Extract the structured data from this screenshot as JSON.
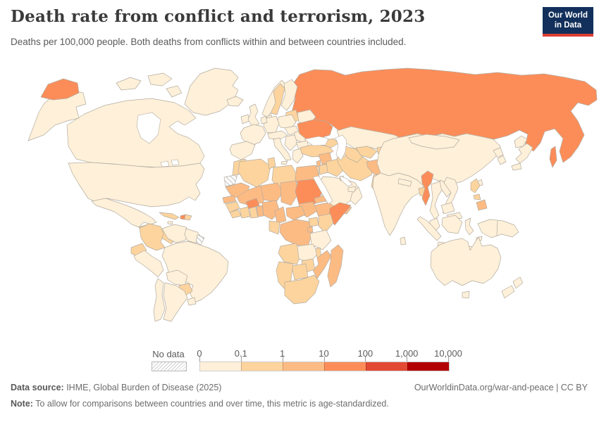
{
  "header": {
    "title": "Death rate from conflict and terrorism, 2023",
    "subtitle": "Deaths per 100,000 people. Both deaths from conflicts within and between countries included.",
    "logo": {
      "line1": "Our World",
      "line2": "in Data",
      "bg": "#12305b",
      "accent": "#dc3e32"
    }
  },
  "legend": {
    "no_data_label": "No data",
    "tick_labels": [
      "0",
      "0.1",
      "1",
      "10",
      "100",
      "1,000",
      "10,000"
    ]
  },
  "map": {
    "ocean_color": "#ffffff",
    "border_color": "#b3aca0",
    "default_fill": "#fef0d9"
  },
  "footer": {
    "source_label": "Data source:",
    "source_text": " IHME, Global Burden of Disease (2025)",
    "note_label": "Note:",
    "note_text": " To allow for comparisons between countries and over time, this metric is age-standardized.",
    "right_text": "OurWorldinData.org/war-and-peace | CC BY"
  },
  "chart_data": {
    "type": "choropleth",
    "title": "Death rate from conflict and terrorism, 2023",
    "subtitle": "Deaths per 100,000 people. Both deaths from conflicts within and between countries included.",
    "year": "2023",
    "unit": "deaths per 100,000 people",
    "scale": {
      "kind": "log-binned",
      "bin_ranges": [
        "0-0.1",
        "0.1-1",
        "1-10",
        "10-100",
        "100-1,000",
        "1,000-10,000"
      ],
      "colors": [
        "#fef0d9",
        "#fdd49e",
        "#fdbb84",
        "#fc8d59",
        "#e34a33",
        "#b30000"
      ],
      "no_data_style": "hatched"
    },
    "country_bins": {
      "usa": 0,
      "canada": 0,
      "greenland": 0,
      "iceland": 0,
      "mexico": 0,
      "cuba": 1,
      "haiti": 3,
      "dominican-republic": 1,
      "jamaica": 0,
      "central-america": 1,
      "colombia": 1,
      "venezuela": 0,
      "guyana-suriname": 0,
      "french-guiana": "no_data",
      "ecuador": 1,
      "peru": 0,
      "brazil": 0,
      "bolivia": 0,
      "paraguay": 1,
      "uruguay": 0,
      "argentina": 0,
      "chile": 0,
      "ireland": 0,
      "uk": 0,
      "norway": 0,
      "sweden": 1,
      "finland": 0,
      "denmark": 0,
      "baltics": 1,
      "belarus": 0,
      "poland": 0,
      "germany": 0,
      "benelux": 0,
      "france": 0,
      "iberia": 0,
      "alpine": 0,
      "italy": 0,
      "hungary-slovakia": 0,
      "romania": 0,
      "balkans": 0,
      "bulgaria": 0,
      "greece": 0,
      "ukraine": 3,
      "russia": 3,
      "turkey": 1,
      "caucasus": 1,
      "syria": 2,
      "lebanon": 2,
      "israel": 1,
      "palestine": 4,
      "jordan": 1,
      "iraq": 1,
      "iran": 1,
      "saudi-arabia": 0,
      "yemen": 2,
      "oman": 0,
      "uae": 0,
      "kuwait": 1,
      "kazakhstan": 0,
      "turkmenistan": 1,
      "uzbekistan": 1,
      "kyrgyzstan-tajikistan": 1,
      "afghanistan": 2,
      "pakistan": 1,
      "india": 0,
      "nepal": 0,
      "bangladesh": 1,
      "sri-lanka": 0,
      "china": 0,
      "mongolia": 0,
      "north-korea": 0,
      "south-korea": 0,
      "japan": 0,
      "taiwan": 0,
      "myanmar": 3,
      "thailand": 0,
      "laos": 0,
      "vietnam": 0,
      "cambodia": 0,
      "malaysia": 0,
      "indonesia": 0,
      "philippines": 1,
      "philippines-mindanao": 2,
      "papua-new-guinea": 0,
      "australia": 0,
      "new-zealand": 0,
      "morocco": 1,
      "western-sahara": "no_data",
      "algeria": 1,
      "tunisia": 1,
      "libya": 1,
      "egypt": 2,
      "mauritania": 2,
      "senegal": 2,
      "guinea": 1,
      "sierra-leone-liberia": 1,
      "mali": 2,
      "burkina-faso": 3,
      "ivory-coast": 1,
      "ghana": 1,
      "togo-benin": 2,
      "niger": 2,
      "nigeria": 2,
      "chad": 2,
      "sudan": 3,
      "south-sudan": 2,
      "eritrea": 2,
      "ethiopia": 2,
      "somalia": 3,
      "cameroon": 2,
      "central-african-republic": 2,
      "drc": 2,
      "congo-gabon": 1,
      "uganda": 1,
      "kenya": 1,
      "rwanda-burundi": 2,
      "tanzania": 0,
      "angola": 1,
      "zambia": 0,
      "malawi": 1,
      "mozambique": 2,
      "zimbabwe": 1,
      "botswana": 1,
      "namibia": 1,
      "south-africa": 1,
      "madagascar": 2
    }
  }
}
